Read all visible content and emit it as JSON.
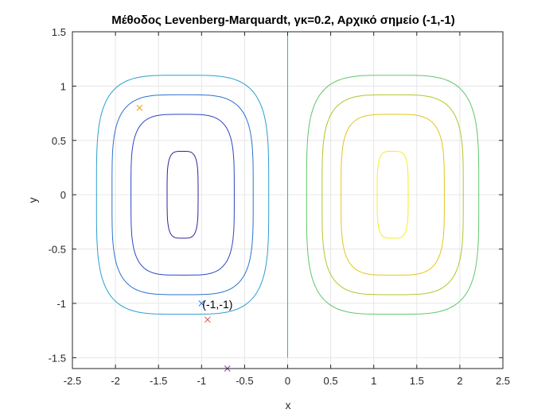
{
  "chart_data": {
    "type": "line",
    "title": "Μέθοδος Levenberg-Marquardt, γκ=0.2, Αρχικό σημείο (-1,-1)",
    "xlabel": "x",
    "ylabel": "y",
    "xlim": [
      -2.5,
      2.5
    ],
    "ylim": [
      -1.6,
      1.5
    ],
    "xticks": [
      -2.5,
      -2,
      -1.5,
      -1,
      -0.5,
      0,
      0.5,
      1,
      1.5,
      2,
      2.5
    ],
    "xtick_labels": [
      "-2.5",
      "-2",
      "-1.5",
      "-1",
      "-0.5",
      "0",
      "0.5",
      "1",
      "1.5",
      "2",
      "2.5"
    ],
    "yticks": [
      1.5,
      1,
      0.5,
      0,
      -0.5,
      -1,
      -1.5
    ],
    "ytick_labels": [
      "1.5",
      "1",
      "0.5",
      "0",
      "-0.5",
      "-1",
      "-1.5"
    ],
    "grid": true,
    "contours": [
      {
        "cx": -1.22,
        "rx": 1.0,
        "ry": 1.1,
        "p": 4,
        "color": "#2c9ed1"
      },
      {
        "cx": -1.22,
        "rx": 0.82,
        "ry": 0.92,
        "p": 4,
        "color": "#2a72cf"
      },
      {
        "cx": -1.22,
        "rx": 0.6,
        "ry": 0.74,
        "p": 4,
        "color": "#2d45c5"
      },
      {
        "cx": -1.22,
        "rx": 0.18,
        "ry": 0.4,
        "p": 4,
        "color": "#3a1f9c"
      },
      {
        "cx": 1.22,
        "rx": 1.0,
        "ry": 1.1,
        "p": 4,
        "color": "#61c66b"
      },
      {
        "cx": 1.22,
        "rx": 0.82,
        "ry": 0.92,
        "p": 4,
        "color": "#b7c32b"
      },
      {
        "cx": 1.22,
        "rx": 0.6,
        "ry": 0.74,
        "p": 4,
        "color": "#e3c51d"
      },
      {
        "cx": 1.22,
        "rx": 0.18,
        "ry": 0.4,
        "p": 4,
        "color": "#f4ef1f"
      }
    ],
    "vertical_line": {
      "x": 0,
      "y_from": -1.5,
      "y_to": 1.5,
      "color": "#2ab7b7"
    },
    "points": [
      {
        "x": -1.72,
        "y": 0.8,
        "color": "#ec9a22"
      },
      {
        "x": -1.0,
        "y": -1.0,
        "color": "#2a72cf"
      },
      {
        "x": -0.93,
        "y": -1.15,
        "color": "#e4463a"
      },
      {
        "x": -0.7,
        "y": -1.6,
        "color": "#8a3a9c"
      }
    ],
    "annotations": [
      {
        "text": "(-1,-1)",
        "x": -1.0,
        "y": -1.0
      }
    ]
  }
}
